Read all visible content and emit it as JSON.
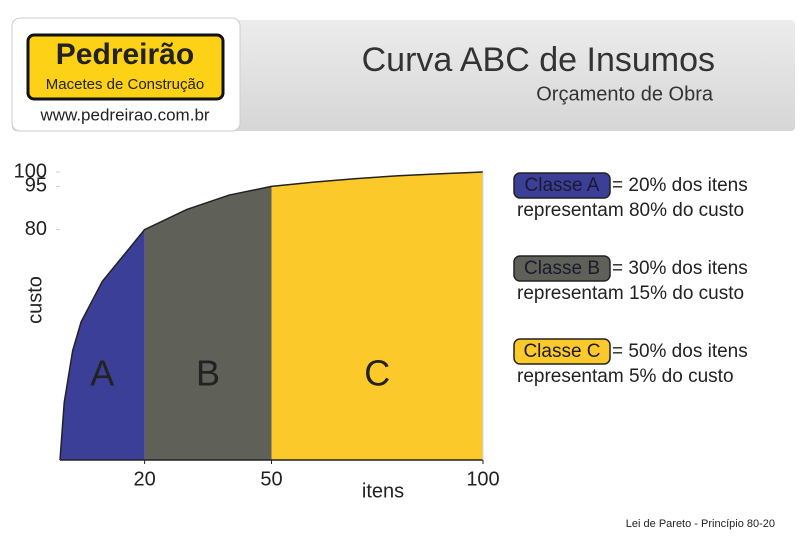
{
  "header": {
    "brand": "Pedreirão",
    "tagline": "Macetes de Construção",
    "url": "www.pedreirao.com.br",
    "title": "Curva ABC de Insumos",
    "subtitle": "Orçamento de Obra"
  },
  "chart_data": {
    "type": "area",
    "xlabel": "itens",
    "ylabel": "custo",
    "x": [
      0,
      1,
      3,
      5,
      10,
      20,
      30,
      40,
      50,
      60,
      70,
      80,
      90,
      100
    ],
    "values": [
      0,
      20,
      38,
      48,
      62,
      80,
      87,
      92,
      95,
      96.5,
      97.7,
      98.7,
      99.4,
      100
    ],
    "xlim": [
      0,
      100
    ],
    "ylim": [
      0,
      100
    ],
    "xticks": [
      20,
      50,
      100
    ],
    "yticks": [
      80,
      95,
      100
    ],
    "regions": [
      {
        "name": "A",
        "color": "#3b3f97",
        "to": 20
      },
      {
        "name": "B",
        "color": "#5f6058",
        "to": 50
      },
      {
        "name": "C",
        "color": "#fcc92a",
        "to": 100
      }
    ]
  },
  "classes": [
    {
      "label": "Classe A",
      "color": "#3b3f97",
      "text": "= 20% dos itens",
      "text2": "representam 80% do custo"
    },
    {
      "label": "Classe B",
      "color": "#5f6058",
      "text": "= 30% dos itens",
      "text2": "representam 15% do custo"
    },
    {
      "label": "Classe C",
      "color": "#fcc92a",
      "text": "= 50% dos itens",
      "text2": "representam 5% do custo"
    }
  ],
  "footer": "Lei de Pareto - Princípio 80-20"
}
